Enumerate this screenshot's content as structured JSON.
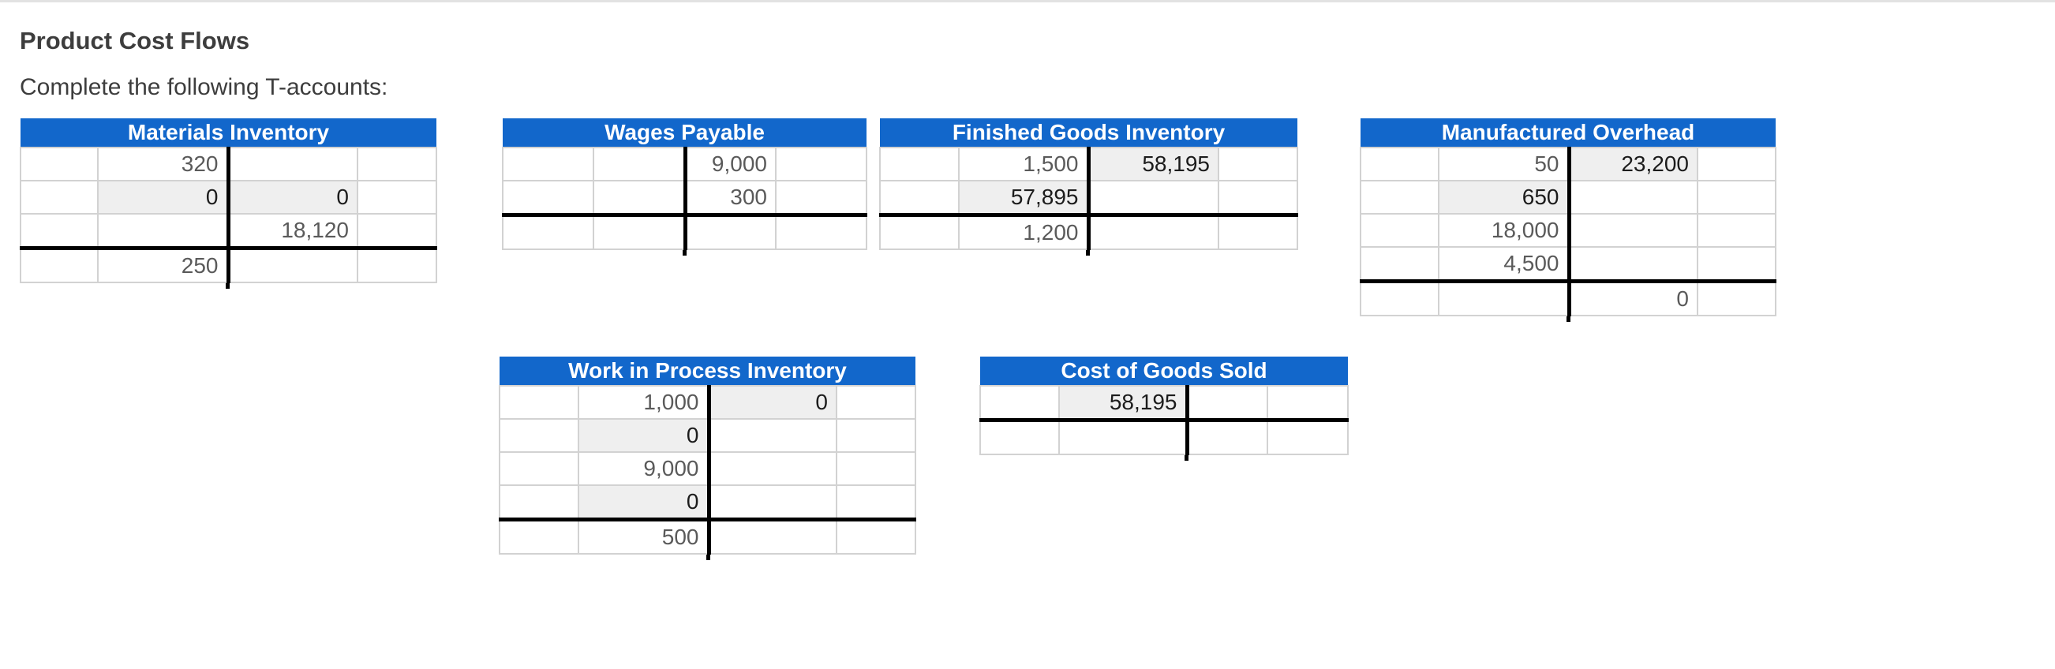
{
  "page": {
    "title": "Product Cost Flows",
    "subtitle": "Complete the following T-accounts:"
  },
  "colors": {
    "header_blue": "#1267cb",
    "highlight_cell": "#efefef",
    "given_text": "#5a5a5a",
    "entered_text": "#1c1c1c",
    "cell_border": "#d2d2d2",
    "black_line": "#000000",
    "top_strip": "#e2e2e2",
    "heading_text": "#3d3d3d"
  },
  "accounts": [
    {
      "id": "materials",
      "title": "Materials Inventory",
      "total_line_before_row": 3,
      "rows": [
        {
          "debit": "320",
          "credit": ""
        },
        {
          "debit": "0",
          "credit": "0",
          "debit_entered": true,
          "credit_entered": true
        },
        {
          "debit": "",
          "credit": "18,120"
        },
        {
          "debit": "250",
          "credit": ""
        }
      ]
    },
    {
      "id": "wages",
      "title": "Wages Payable",
      "total_line_before_row": 2,
      "rows": [
        {
          "debit": "",
          "credit": "9,000"
        },
        {
          "debit": "",
          "credit": "300"
        },
        {
          "debit": "",
          "credit": ""
        }
      ]
    },
    {
      "id": "finished_goods",
      "title": "Finished Goods Inventory",
      "total_line_before_row": 2,
      "rows": [
        {
          "debit": "1,500",
          "credit": "58,195",
          "credit_entered": true
        },
        {
          "debit": "57,895",
          "credit": "",
          "debit_entered": true
        },
        {
          "debit": "1,200",
          "credit": ""
        }
      ]
    },
    {
      "id": "overhead",
      "title": "Manufactured Overhead",
      "total_line_before_row": 4,
      "rows": [
        {
          "debit": "50",
          "credit": "23,200",
          "credit_entered": true
        },
        {
          "debit": "650",
          "credit": "",
          "debit_entered": true
        },
        {
          "debit": "18,000",
          "credit": ""
        },
        {
          "debit": "4,500",
          "credit": ""
        },
        {
          "debit": "",
          "credit": "0"
        }
      ]
    },
    {
      "id": "wip",
      "title": "Work in Process Inventory",
      "total_line_before_row": 4,
      "rows": [
        {
          "debit": "1,000",
          "credit": "0",
          "credit_entered": true
        },
        {
          "debit": "0",
          "credit": "",
          "debit_entered": true
        },
        {
          "debit": "9,000",
          "credit": ""
        },
        {
          "debit": "0",
          "credit": "",
          "debit_entered": true
        },
        {
          "debit": "500",
          "credit": ""
        }
      ]
    },
    {
      "id": "cogs",
      "title": "Cost of Goods Sold",
      "total_line_before_row": 1,
      "rows": [
        {
          "debit": "58,195",
          "credit": "",
          "debit_entered": true
        },
        {
          "debit": "",
          "credit": ""
        }
      ]
    }
  ]
}
